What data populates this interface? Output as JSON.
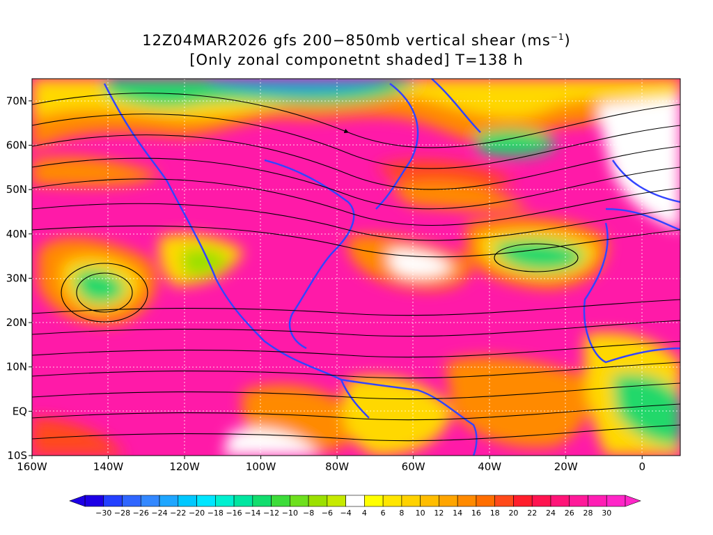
{
  "title": {
    "line1_main": "12Z04MAR2026 gfs 200−850mb vertical shear (ms",
    "line1_sup": "−1",
    "line1_end": ")",
    "line2": "[Only zonal componetnt shaded] T=138 h"
  },
  "map": {
    "lon_range": [
      -160,
      10
    ],
    "lat_range": [
      -10,
      75
    ],
    "lat_labels": [
      {
        "lat": 70,
        "text": "70N"
      },
      {
        "lat": 60,
        "text": "60N"
      },
      {
        "lat": 50,
        "text": "50N"
      },
      {
        "lat": 40,
        "text": "40N"
      },
      {
        "lat": 30,
        "text": "30N"
      },
      {
        "lat": 20,
        "text": "20N"
      },
      {
        "lat": 10,
        "text": "10N"
      },
      {
        "lat": 0,
        "text": "EQ"
      },
      {
        "lat": -10,
        "text": "10S"
      }
    ],
    "lon_labels": [
      {
        "lon": -160,
        "text": "160W"
      },
      {
        "lon": -140,
        "text": "140W"
      },
      {
        "lon": -120,
        "text": "120W"
      },
      {
        "lon": -100,
        "text": "100W"
      },
      {
        "lon": -80,
        "text": "80W"
      },
      {
        "lon": -60,
        "text": "60W"
      },
      {
        "lon": -40,
        "text": "40W"
      },
      {
        "lon": -20,
        "text": "20W"
      },
      {
        "lon": 0,
        "text": "0"
      }
    ],
    "field_description_colors": {
      "high_shear": "#ff1aa8",
      "strong": "#ff2b4a",
      "moderate": "#ff8a00",
      "weak_positive": "#ffd800",
      "near_zero": "#ffffff",
      "weak_negative": "#9be000",
      "negative": "#22d86a"
    }
  },
  "colorbar": {
    "labels": [
      "−30",
      "−28",
      "−26",
      "−24",
      "−22",
      "−20",
      "−18",
      "−16",
      "−14",
      "−12",
      "−10",
      "−8",
      "−6",
      "−4",
      "4",
      "6",
      "8",
      "10",
      "12",
      "14",
      "16",
      "18",
      "20",
      "22",
      "24",
      "26",
      "28",
      "30"
    ],
    "colors": [
      "#1d00e6",
      "#2440ff",
      "#2f66ff",
      "#3388ff",
      "#1fa6ff",
      "#00c8ff",
      "#00e6ff",
      "#00f0d0",
      "#00e6a0",
      "#12dd6e",
      "#3ddc3a",
      "#6ee01e",
      "#9be000",
      "#c6ea00",
      "#ffffff",
      "#ffff00",
      "#ffe600",
      "#ffd200",
      "#ffbd00",
      "#ffa500",
      "#ff8a00",
      "#ff6e00",
      "#ff4a1a",
      "#ff1e2c",
      "#ff1450",
      "#ff1478",
      "#ff1a9a",
      "#ff1eb4",
      "#ff26c8"
    ],
    "left_arrow_color": "#1d00e6",
    "right_arrow_color": "#ff26c8"
  }
}
